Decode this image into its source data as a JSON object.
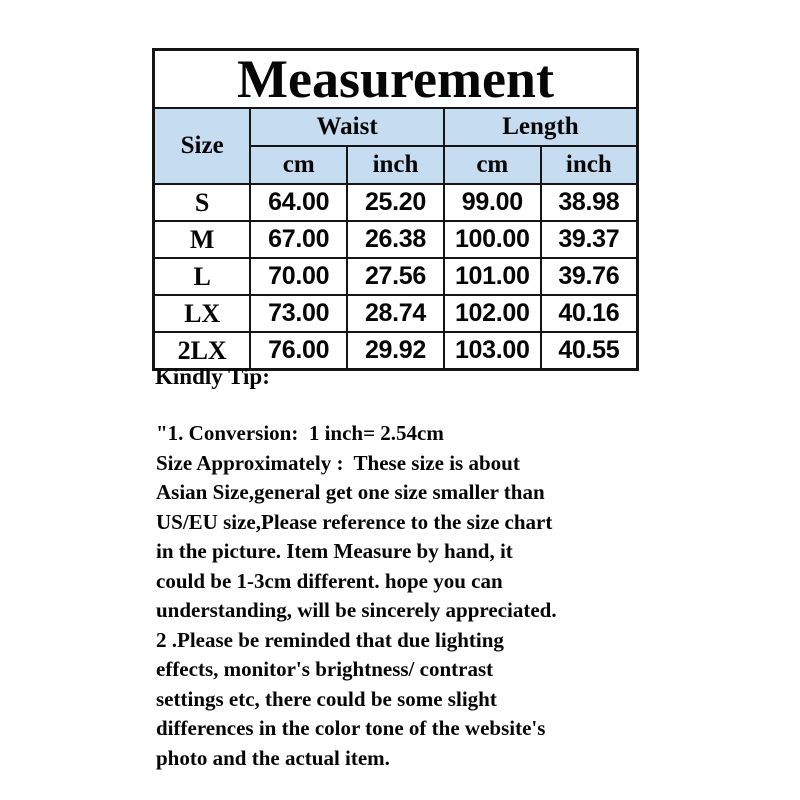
{
  "title": "Measurement",
  "table": {
    "header_bg": "#c6dcf0",
    "border_color": "#151515",
    "header": {
      "size_label": "Size",
      "waist_label": "Waist",
      "length_label": "Length",
      "unit_cm": "cm",
      "unit_inch": "inch"
    },
    "rows": [
      {
        "size": "S",
        "waist_cm": "64.00",
        "waist_inch": "25.20",
        "length_cm": "99.00",
        "length_inch": "38.98"
      },
      {
        "size": "M",
        "waist_cm": "67.00",
        "waist_inch": "26.38",
        "length_cm": "100.00",
        "length_inch": "39.37"
      },
      {
        "size": "L",
        "waist_cm": "70.00",
        "waist_inch": "27.56",
        "length_cm": "101.00",
        "length_inch": "39.76"
      },
      {
        "size": "LX",
        "waist_cm": "73.00",
        "waist_inch": "28.74",
        "length_cm": "102.00",
        "length_inch": "40.16"
      },
      {
        "size": "2LX",
        "waist_cm": "76.00",
        "waist_inch": "29.92",
        "length_cm": "103.00",
        "length_inch": "40.55"
      }
    ]
  },
  "tips": {
    "heading": "Kindly Tip:",
    "body": "\"1. Conversion:  1 inch= 2.54cm\nSize Approximately :  These size is about\nAsian Size,general get one size smaller than\nUS/EU size,Please reference to the size chart\nin the picture. Item Measure by hand, it\ncould be 1-3cm different. hope you can\nunderstanding, will be sincerely appreciated.\n2 .Please be reminded that due lighting\neffects, monitor's brightness/ contrast\nsettings etc, there could be some slight\ndifferences in the color tone of the website's\nphoto and the actual item."
  }
}
